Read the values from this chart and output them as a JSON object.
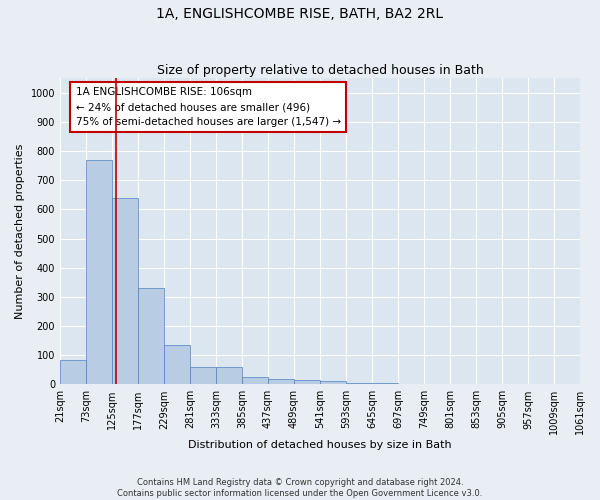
{
  "title": "1A, ENGLISHCOMBE RISE, BATH, BA2 2RL",
  "subtitle": "Size of property relative to detached houses in Bath",
  "xlabel": "Distribution of detached houses by size in Bath",
  "ylabel": "Number of detached properties",
  "bar_values": [
    85,
    770,
    640,
    330,
    135,
    60,
    60,
    25,
    20,
    15,
    10,
    5,
    5,
    0,
    0,
    0,
    0,
    0,
    0,
    0
  ],
  "bin_labels": [
    "21sqm",
    "73sqm",
    "125sqm",
    "177sqm",
    "229sqm",
    "281sqm",
    "333sqm",
    "385sqm",
    "437sqm",
    "489sqm",
    "541sqm",
    "593sqm",
    "645sqm",
    "697sqm",
    "749sqm",
    "801sqm",
    "853sqm",
    "905sqm",
    "957sqm",
    "1009sqm",
    "1061sqm"
  ],
  "bar_color": "#b8cce4",
  "bar_edge_color": "#4f81bd",
  "background_color": "#dce6f1",
  "fig_background_color": "#e9eef5",
  "grid_color": "#ffffff",
  "vline_x": 1.64,
  "vline_color": "#c00000",
  "annotation_text": "1A ENGLISHCOMBE RISE: 106sqm\n← 24% of detached houses are smaller (496)\n75% of semi-detached houses are larger (1,547) →",
  "annotation_box_facecolor": "#ffffff",
  "annotation_box_edgecolor": "#c00000",
  "ylim": [
    0,
    1050
  ],
  "yticks": [
    0,
    100,
    200,
    300,
    400,
    500,
    600,
    700,
    800,
    900,
    1000
  ],
  "footer_text": "Contains HM Land Registry data © Crown copyright and database right 2024.\nContains public sector information licensed under the Open Government Licence v3.0.",
  "title_fontsize": 10,
  "subtitle_fontsize": 9,
  "axis_label_fontsize": 8,
  "tick_fontsize": 7,
  "annotation_fontsize": 7.5,
  "footer_fontsize": 6
}
